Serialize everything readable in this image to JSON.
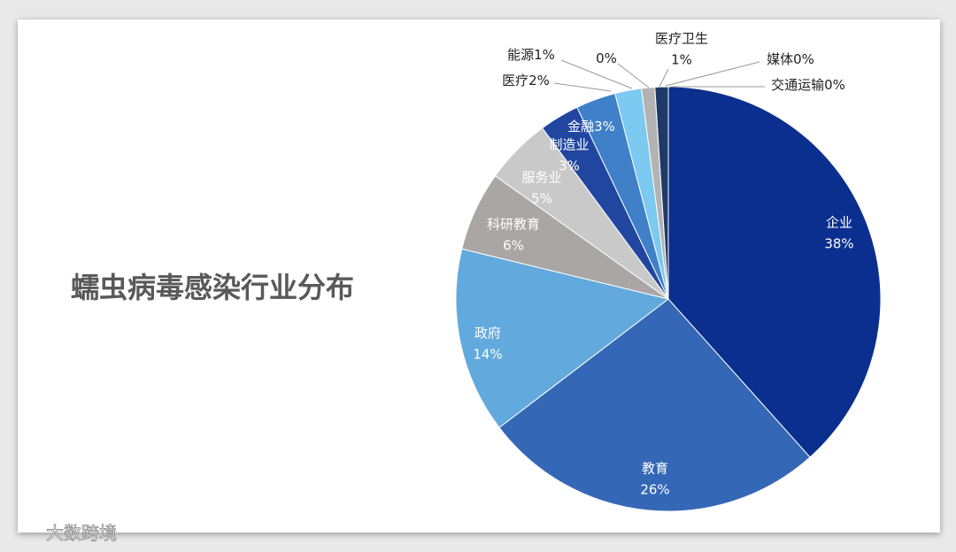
{
  "chart_data": {
    "type": "pie",
    "title": "蠕虫病毒感染行业分布",
    "categories": [
      "企业",
      "教育",
      "政府",
      "科研教育",
      "服务业",
      "制造业",
      "金融",
      "医疗",
      "能源",
      null,
      "医疗卫生",
      "媒体",
      "交通运输"
    ],
    "values": [
      38,
      26,
      14,
      6,
      5,
      3,
      3,
      2,
      1,
      0,
      1,
      0,
      0
    ],
    "value_labels": [
      "38%",
      "26%",
      "14%",
      "6%",
      "5%",
      "3%",
      "3%",
      "2%",
      "1%",
      "0%",
      "1%",
      "0%",
      "0%"
    ],
    "colors": [
      "#0b2f8e",
      "#3567b7",
      "#62a9de",
      "#aaa6a5",
      "#c9c9c9",
      "#2146a0",
      "#3f80c8",
      "#7cc9f1",
      "#b3b3b3",
      "#dadada",
      "#1f3a68",
      "#3a5a90",
      "#6a7fa8"
    ]
  },
  "watermark": "大数跨境"
}
